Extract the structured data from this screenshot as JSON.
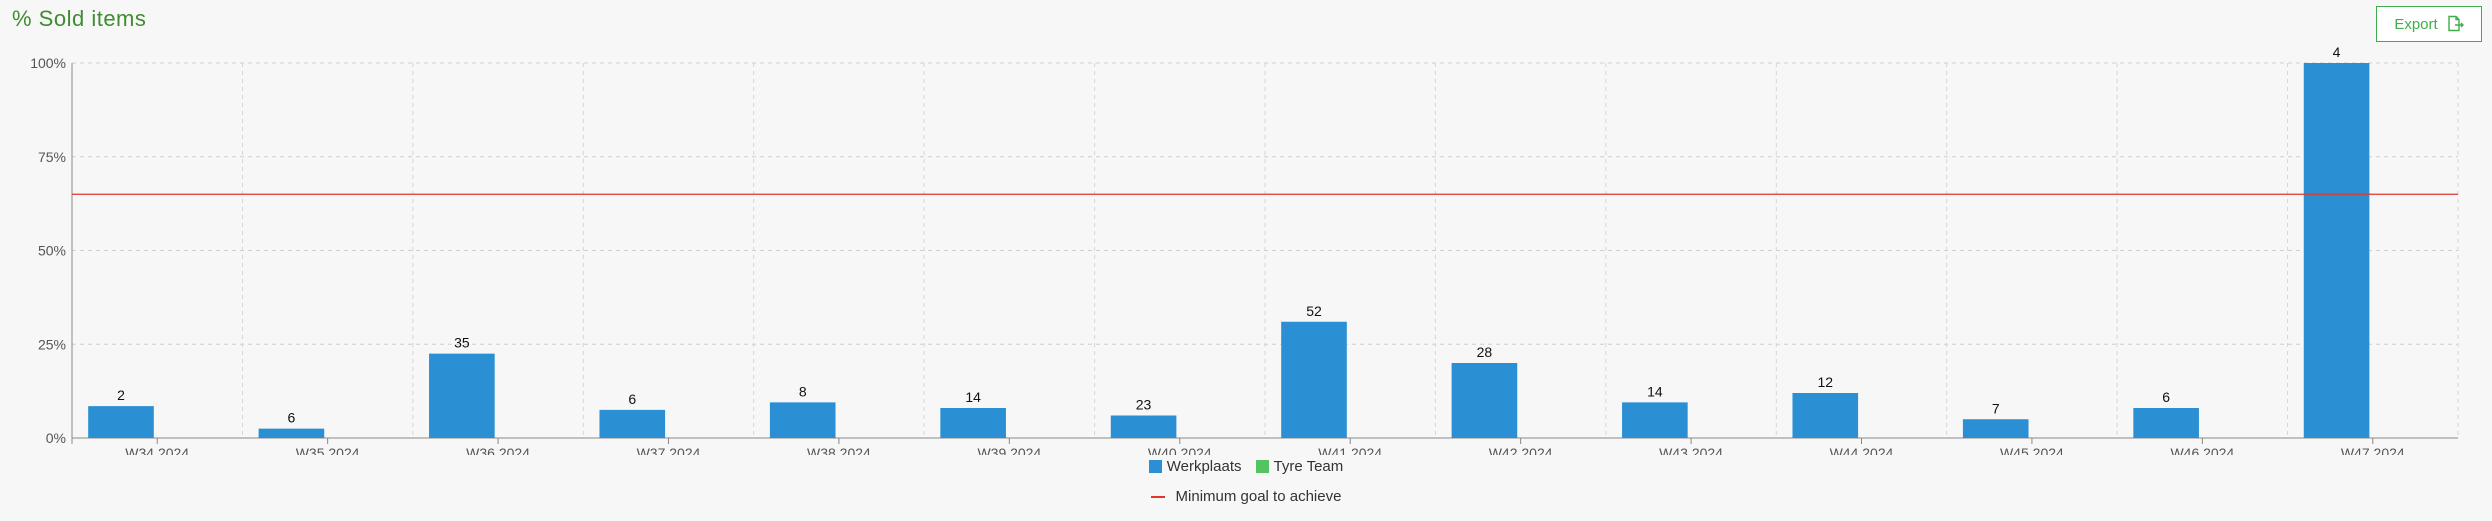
{
  "header": {
    "title": "% Sold items",
    "export_label": "Export"
  },
  "icons": {
    "export": "file-export-icon"
  },
  "colors": {
    "werkplaats": "#2a8fd3",
    "tyre_team": "#53c45f",
    "goal": "#e0362b",
    "title": "#3f8c32"
  },
  "legend": {
    "werkplaats": "Werkplaats",
    "tyre_team": "Tyre Team",
    "goal": "Minimum goal to achieve"
  },
  "chart_data": {
    "type": "bar",
    "categories": [
      "W34 2024",
      "W35 2024",
      "W36 2024",
      "W37 2024",
      "W38 2024",
      "W39 2024",
      "W40 2024",
      "W41 2024",
      "W42 2024",
      "W43 2024",
      "W44 2024",
      "W45 2024",
      "W46 2024",
      "W47 2024"
    ],
    "series": [
      {
        "name": "Werkplaats",
        "values": [
          8.5,
          2.5,
          22.5,
          7.5,
          9.5,
          8,
          6,
          31,
          20,
          9.5,
          12,
          5,
          8,
          100
        ],
        "labels": [
          "2",
          "6",
          "35",
          "6",
          "8",
          "14",
          "23",
          "52",
          "28",
          "14",
          "12",
          "7",
          "6",
          "4"
        ]
      },
      {
        "name": "Tyre Team",
        "values": [
          0,
          0,
          0,
          0,
          0,
          0,
          0,
          0,
          0,
          0,
          0,
          0,
          0,
          0
        ]
      }
    ],
    "goal": {
      "name": "Minimum goal to achieve",
      "value": 65
    },
    "ylim": [
      0,
      100
    ],
    "yticks": [
      "0%",
      "25%",
      "50%",
      "75%",
      "100%"
    ],
    "grid": true,
    "legend_position": "bottom"
  }
}
